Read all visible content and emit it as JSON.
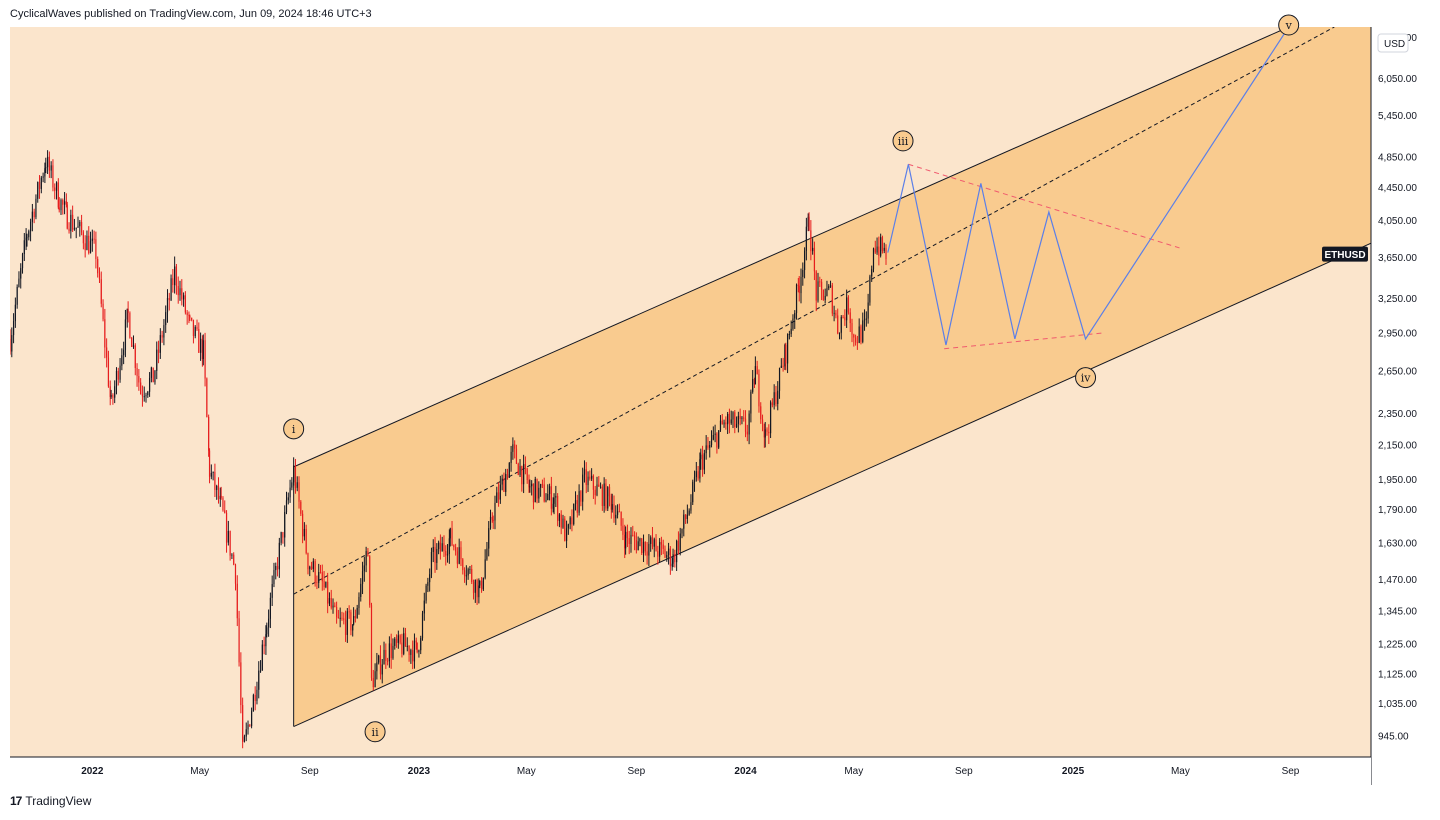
{
  "header": {
    "published_text": "CyclicalWaves published on TradingView.com, Jun 09, 2024 18:46 UTC+3"
  },
  "footer": {
    "brand_logo": "17",
    "brand_text": "TradingView"
  },
  "colors": {
    "background": "#fbe5cc",
    "channel_fill": "#f9cb8f",
    "candle_up": "#131722",
    "candle_down": "#e61e1e",
    "projection_line": "#5b7fe8",
    "triangle_dashes": "#f05a6e",
    "channel_line": "#131722",
    "ticker_badge": "#131722"
  },
  "chart_data": {
    "type": "candlestick",
    "symbol": "ETHUSD",
    "currency": "USD",
    "y_scale": "log",
    "ylim": [
      890,
      7000
    ],
    "x_range": [
      "2021-10-01",
      "2025-11-30"
    ],
    "price_ticks": [
      "6,800.00",
      "6,050.00",
      "5,450.00",
      "4,850.00",
      "4,450.00",
      "4,050.00",
      "3,650.00",
      "3,250.00",
      "2,950.00",
      "2,650.00",
      "2,350.00",
      "2,150.00",
      "1,950.00",
      "1,790.00",
      "1,630.00",
      "1,470.00",
      "1,345.00",
      "1,225.00",
      "1,125.00",
      "1,035.00",
      "945.00"
    ],
    "time_ticks": [
      {
        "label": "2022",
        "date": "2022-01-01",
        "bold": true
      },
      {
        "label": "May",
        "date": "2022-05-01",
        "bold": false
      },
      {
        "label": "Sep",
        "date": "2022-09-01",
        "bold": false
      },
      {
        "label": "2023",
        "date": "2023-01-01",
        "bold": true
      },
      {
        "label": "May",
        "date": "2023-05-01",
        "bold": false
      },
      {
        "label": "Sep",
        "date": "2023-09-01",
        "bold": false
      },
      {
        "label": "2024",
        "date": "2024-01-01",
        "bold": true
      },
      {
        "label": "May",
        "date": "2024-05-01",
        "bold": false
      },
      {
        "label": "Sep",
        "date": "2024-09-01",
        "bold": false
      },
      {
        "label": "2025",
        "date": "2025-01-01",
        "bold": true
      },
      {
        "label": "May",
        "date": "2025-05-01",
        "bold": false
      },
      {
        "label": "Sep",
        "date": "2025-09-01",
        "bold": false
      }
    ],
    "price_path": [
      [
        "2021-10-01",
        2900
      ],
      [
        "2021-10-20",
        3900
      ],
      [
        "2021-11-10",
        4800
      ],
      [
        "2021-11-25",
        4300
      ],
      [
        "2021-12-04",
        4100
      ],
      [
        "2021-12-20",
        3900
      ],
      [
        "2022-01-05",
        3700
      ],
      [
        "2022-01-22",
        2400
      ],
      [
        "2022-02-10",
        3100
      ],
      [
        "2022-02-24",
        2500
      ],
      [
        "2022-03-10",
        2600
      ],
      [
        "2022-04-03",
        3500
      ],
      [
        "2022-04-20",
        3000
      ],
      [
        "2022-05-05",
        2800
      ],
      [
        "2022-05-12",
        2000
      ],
      [
        "2022-05-25",
        1800
      ],
      [
        "2022-06-10",
        1500
      ],
      [
        "2022-06-18",
        900
      ],
      [
        "2022-06-30",
        1050
      ],
      [
        "2022-07-15",
        1300
      ],
      [
        "2022-08-10",
        1900
      ],
      [
        "2022-08-14",
        2000
      ],
      [
        "2022-08-30",
        1550
      ],
      [
        "2022-09-15",
        1450
      ],
      [
        "2022-10-01",
        1300
      ],
      [
        "2022-10-20",
        1300
      ],
      [
        "2022-11-05",
        1620
      ],
      [
        "2022-11-09",
        1100
      ],
      [
        "2022-11-25",
        1200
      ],
      [
        "2022-12-15",
        1220
      ],
      [
        "2022-12-30",
        1200
      ],
      [
        "2023-01-15",
        1550
      ],
      [
        "2023-02-05",
        1650
      ],
      [
        "2023-03-10",
        1420
      ],
      [
        "2023-03-25",
        1780
      ],
      [
        "2023-04-16",
        2100
      ],
      [
        "2023-05-05",
        1900
      ],
      [
        "2023-06-01",
        1850
      ],
      [
        "2023-06-15",
        1650
      ],
      [
        "2023-07-05",
        1950
      ],
      [
        "2023-08-05",
        1830
      ],
      [
        "2023-08-20",
        1650
      ],
      [
        "2023-09-15",
        1620
      ],
      [
        "2023-10-12",
        1560
      ],
      [
        "2023-10-30",
        1800
      ],
      [
        "2023-11-12",
        2050
      ],
      [
        "2023-12-10",
        2300
      ],
      [
        "2024-01-03",
        2250
      ],
      [
        "2024-01-12",
        2650
      ],
      [
        "2024-01-23",
        2200
      ],
      [
        "2024-02-15",
        2800
      ],
      [
        "2024-03-01",
        3400
      ],
      [
        "2024-03-12",
        4050
      ],
      [
        "2024-03-20",
        3300
      ],
      [
        "2024-04-05",
        3300
      ],
      [
        "2024-04-13",
        3000
      ],
      [
        "2024-04-25",
        3200
      ],
      [
        "2024-05-01",
        2900
      ],
      [
        "2024-05-15",
        3000
      ],
      [
        "2024-05-23",
        3800
      ],
      [
        "2024-06-08",
        3680
      ]
    ],
    "channel": {
      "upper": [
        [
          "2022-08-14",
          2020
        ],
        [
          "2025-08-30",
          7000
        ]
      ],
      "lower": [
        [
          "2022-08-14",
          970
        ],
        [
          "2025-11-30",
          3800
        ]
      ],
      "midline": [
        [
          "2022-08-14",
          1410
        ],
        [
          "2025-10-20",
          7000
        ]
      ]
    },
    "projection": [
      [
        "2024-06-08",
        3700
      ],
      [
        "2024-07-01",
        4750
      ],
      [
        "2024-08-12",
        2850
      ],
      [
        "2024-09-20",
        4500
      ],
      [
        "2024-10-28",
        2900
      ],
      [
        "2024-12-05",
        4150
      ],
      [
        "2025-01-15",
        2900
      ],
      [
        "2025-08-30",
        7000
      ]
    ],
    "triangle": {
      "upper": [
        [
          "2024-07-01",
          4750
        ],
        [
          "2025-04-30",
          3750
        ]
      ],
      "lower": [
        [
          "2024-08-10",
          2820
        ],
        [
          "2025-02-05",
          2950
        ]
      ]
    },
    "wave_labels": [
      {
        "label": "i",
        "date": "2022-08-14",
        "price": 2150,
        "position": "above"
      },
      {
        "label": "ii",
        "date": "2022-11-13",
        "price": 1000,
        "position": "below"
      },
      {
        "label": "iii",
        "date": "2024-06-25",
        "price": 4850,
        "position": "above"
      },
      {
        "label": "iv",
        "date": "2025-01-15",
        "price": 2720,
        "position": "below"
      },
      {
        "label": "v",
        "date": "2025-08-30",
        "price": 7000,
        "position": "above"
      }
    ]
  }
}
